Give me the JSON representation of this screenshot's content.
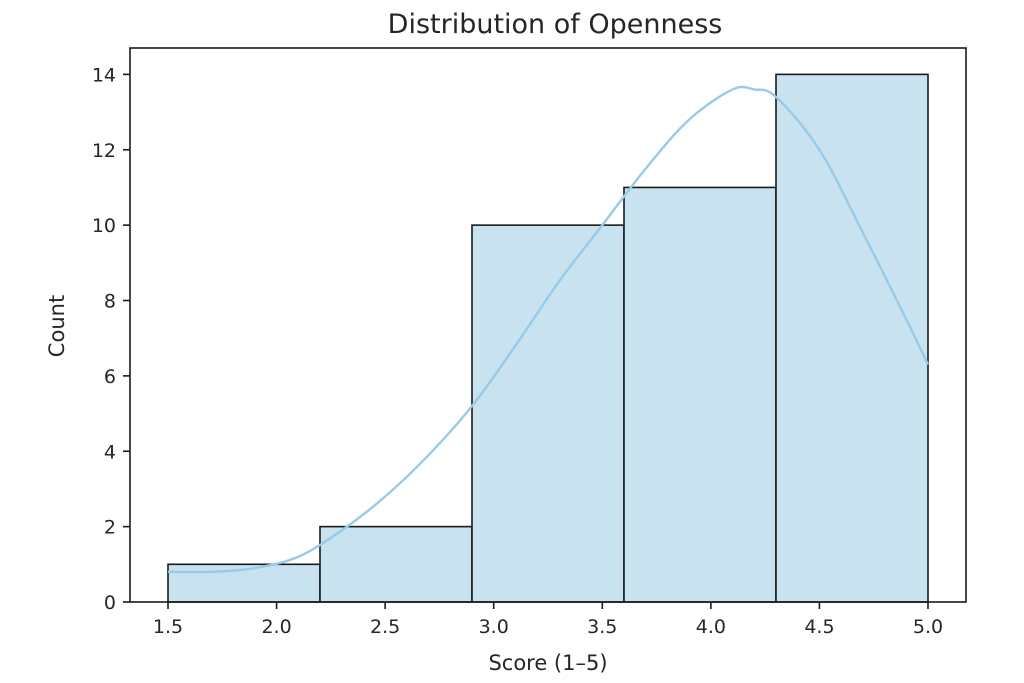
{
  "chart_data": {
    "type": "bar",
    "title": "Distribution of Openness",
    "xlabel": "Score (1–5)",
    "ylabel": "Count",
    "xlim": [
      1.325,
      5.175
    ],
    "ylim": [
      0,
      14.7
    ],
    "xticks": [
      "1.5",
      "2.0",
      "2.5",
      "3.0",
      "3.5",
      "4.0",
      "4.5",
      "5.0"
    ],
    "yticks": [
      "0",
      "2",
      "4",
      "6",
      "8",
      "10",
      "12",
      "14"
    ],
    "bins": [
      {
        "start": 1.5,
        "end": 2.2,
        "count": 1
      },
      {
        "start": 2.2,
        "end": 2.9,
        "count": 2
      },
      {
        "start": 2.9,
        "end": 3.6,
        "count": 10
      },
      {
        "start": 3.6,
        "end": 4.3,
        "count": 11
      },
      {
        "start": 4.3,
        "end": 5.0,
        "count": 14
      }
    ],
    "kde_curve": {
      "x": [
        1.5,
        1.7,
        1.9,
        2.1,
        2.3,
        2.5,
        2.7,
        2.9,
        3.1,
        3.3,
        3.5,
        3.7,
        3.9,
        4.1,
        4.2,
        4.3,
        4.5,
        4.7,
        4.9,
        5.0
      ],
      "y": [
        0.8,
        0.8,
        0.9,
        1.2,
        1.9,
        2.8,
        3.9,
        5.2,
        6.8,
        8.5,
        10.0,
        11.5,
        12.8,
        13.6,
        13.6,
        13.4,
        12.0,
        9.8,
        7.5,
        6.3
      ]
    },
    "grid": false,
    "colors": {
      "bar_fill": "#c9e2f0",
      "bar_edge": "#1a1a1a",
      "kde_line": "#97cbe8"
    }
  }
}
